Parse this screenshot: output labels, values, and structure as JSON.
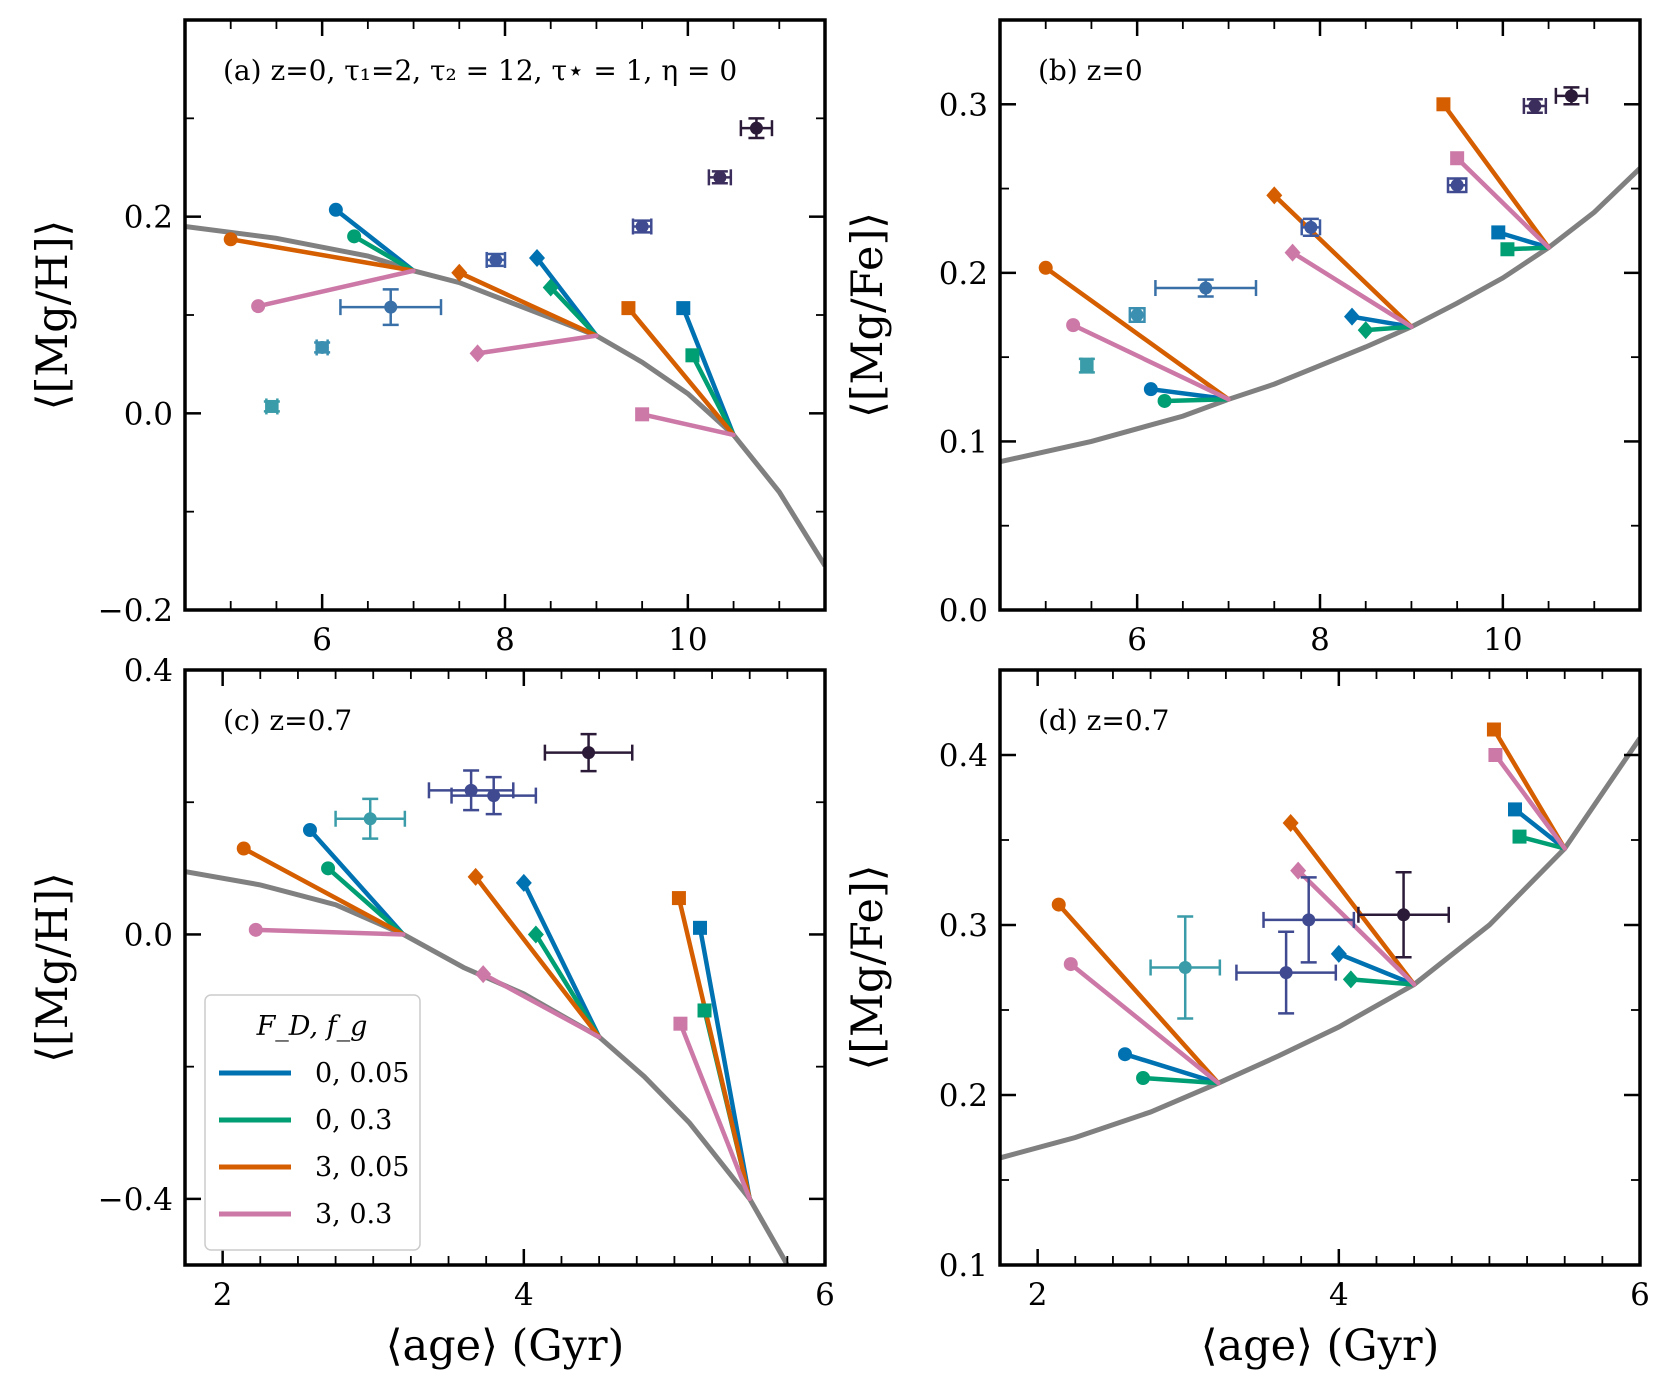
{
  "chart_data": [
    {
      "type": "scatter",
      "panel": "a",
      "annotation": "(a) z=0, τ₁=2, τ₂ = 12, τ⋆ = 1, η = 0",
      "xlabel": "",
      "ylabel": "⟨[Mg/H]⟩",
      "xlim": [
        4.5,
        11.5
      ],
      "ylim": [
        -0.2,
        0.4
      ],
      "xticks": [
        6,
        8,
        10
      ],
      "xticklabels": [
        "6",
        "8",
        "10"
      ],
      "yticks": [
        -0.2,
        0.0,
        0.2
      ],
      "yticklabels": [
        "−0.2",
        "0.0",
        "0.2"
      ],
      "model_curve": {
        "x": [
          4.5,
          5.5,
          6.5,
          7.0,
          7.5,
          8.5,
          9.0,
          9.5,
          10.0,
          10.5,
          11.0,
          11.5
        ],
        "y": [
          0.19,
          0.178,
          0.16,
          0.145,
          0.133,
          0.097,
          0.079,
          0.052,
          0.02,
          -0.022,
          -0.08,
          -0.155
        ]
      },
      "tracks": [
        {
          "color": "blue",
          "marker": "circle",
          "start": [
            7.0,
            0.145
          ],
          "end": [
            6.15,
            0.207
          ]
        },
        {
          "color": "green",
          "marker": "circle",
          "start": [
            7.0,
            0.145
          ],
          "end": [
            6.35,
            0.18
          ]
        },
        {
          "color": "orange",
          "marker": "circle",
          "start": [
            7.0,
            0.145
          ],
          "end": [
            5.0,
            0.177
          ]
        },
        {
          "color": "pink",
          "marker": "circle",
          "start": [
            7.0,
            0.145
          ],
          "end": [
            5.3,
            0.109
          ]
        },
        {
          "color": "blue",
          "marker": "diamond",
          "start": [
            9.0,
            0.079
          ],
          "end": [
            8.35,
            0.158
          ]
        },
        {
          "color": "green",
          "marker": "diamond",
          "start": [
            9.0,
            0.079
          ],
          "end": [
            8.5,
            0.128
          ]
        },
        {
          "color": "orange",
          "marker": "diamond",
          "start": [
            9.0,
            0.079
          ],
          "end": [
            7.5,
            0.143
          ]
        },
        {
          "color": "pink",
          "marker": "diamond",
          "start": [
            9.0,
            0.079
          ],
          "end": [
            7.7,
            0.061
          ]
        },
        {
          "color": "blue",
          "marker": "square",
          "start": [
            10.5,
            -0.022
          ],
          "end": [
            9.95,
            0.107
          ]
        },
        {
          "color": "green",
          "marker": "square",
          "start": [
            10.5,
            -0.022
          ],
          "end": [
            10.05,
            0.059
          ]
        },
        {
          "color": "orange",
          "marker": "square",
          "start": [
            10.5,
            -0.022
          ],
          "end": [
            9.35,
            0.107
          ]
        },
        {
          "color": "pink",
          "marker": "square",
          "start": [
            10.5,
            -0.022
          ],
          "end": [
            9.5,
            -0.001
          ]
        }
      ],
      "observations": [
        {
          "x": 5.45,
          "y": 0.007,
          "xerr": 0.06,
          "yerr": 0.005,
          "color": "#3a9ca8",
          "marker": "square"
        },
        {
          "x": 6.0,
          "y": 0.067,
          "xerr": 0.06,
          "yerr": 0.005,
          "color": "#3b8fb0",
          "marker": "circle"
        },
        {
          "x": 6.75,
          "y": 0.108,
          "xerr": 0.55,
          "yerr": 0.018,
          "color": "#3970a8",
          "marker": "circle"
        },
        {
          "x": 7.9,
          "y": 0.156,
          "xerr": 0.1,
          "yerr": 0.006,
          "color": "#3d5aa0",
          "marker": "circle"
        },
        {
          "x": 9.5,
          "y": 0.19,
          "xerr": 0.1,
          "yerr": 0.006,
          "color": "#3f4a90",
          "marker": "circle"
        },
        {
          "x": 10.35,
          "y": 0.24,
          "xerr": 0.12,
          "yerr": 0.006,
          "color": "#3b2d5c",
          "marker": "circle"
        },
        {
          "x": 10.75,
          "y": 0.29,
          "xerr": 0.17,
          "yerr": 0.01,
          "color": "#2b1b38",
          "marker": "circle"
        }
      ]
    },
    {
      "type": "scatter",
      "panel": "b",
      "annotation": "(b) z=0",
      "xlabel": "",
      "ylabel": "⟨[Mg/Fe]⟩",
      "xlim": [
        4.5,
        11.5
      ],
      "ylim": [
        0.0,
        0.35
      ],
      "xticks": [
        6,
        8,
        10
      ],
      "xticklabels": [
        "6",
        "8",
        "10"
      ],
      "yticks": [
        0.0,
        0.1,
        0.2,
        0.3
      ],
      "yticklabels": [
        "0.0",
        "0.1",
        "0.2",
        "0.3"
      ],
      "model_curve": {
        "x": [
          4.5,
          5.5,
          6.5,
          7.0,
          7.5,
          8.0,
          8.5,
          9.0,
          9.5,
          10.0,
          10.5,
          11.0,
          11.5
        ],
        "y": [
          0.088,
          0.1,
          0.115,
          0.125,
          0.134,
          0.145,
          0.156,
          0.168,
          0.182,
          0.197,
          0.215,
          0.236,
          0.262
        ]
      },
      "tracks": [
        {
          "color": "blue",
          "marker": "circle",
          "start": [
            7.0,
            0.125
          ],
          "end": [
            6.15,
            0.131
          ]
        },
        {
          "color": "green",
          "marker": "circle",
          "start": [
            7.0,
            0.125
          ],
          "end": [
            6.3,
            0.124
          ]
        },
        {
          "color": "orange",
          "marker": "circle",
          "start": [
            7.0,
            0.125
          ],
          "end": [
            5.0,
            0.203
          ]
        },
        {
          "color": "pink",
          "marker": "circle",
          "start": [
            7.0,
            0.125
          ],
          "end": [
            5.3,
            0.169
          ]
        },
        {
          "color": "blue",
          "marker": "diamond",
          "start": [
            9.0,
            0.168
          ],
          "end": [
            8.35,
            0.174
          ]
        },
        {
          "color": "green",
          "marker": "diamond",
          "start": [
            9.0,
            0.168
          ],
          "end": [
            8.5,
            0.166
          ]
        },
        {
          "color": "orange",
          "marker": "diamond",
          "start": [
            9.0,
            0.168
          ],
          "end": [
            7.5,
            0.246
          ]
        },
        {
          "color": "pink",
          "marker": "diamond",
          "start": [
            9.0,
            0.168
          ],
          "end": [
            7.7,
            0.212
          ]
        },
        {
          "color": "blue",
          "marker": "square",
          "start": [
            10.5,
            0.215
          ],
          "end": [
            9.95,
            0.224
          ]
        },
        {
          "color": "green",
          "marker": "square",
          "start": [
            10.5,
            0.215
          ],
          "end": [
            10.05,
            0.214
          ]
        },
        {
          "color": "orange",
          "marker": "square",
          "start": [
            10.5,
            0.215
          ],
          "end": [
            9.35,
            0.3
          ]
        },
        {
          "color": "pink",
          "marker": "square",
          "start": [
            10.5,
            0.215
          ],
          "end": [
            9.5,
            0.268
          ]
        }
      ],
      "observations": [
        {
          "x": 5.45,
          "y": 0.145,
          "xerr": 0.06,
          "yerr": 0.004,
          "color": "#3a9ca8",
          "marker": "square"
        },
        {
          "x": 6.0,
          "y": 0.175,
          "xerr": 0.08,
          "yerr": 0.004,
          "color": "#3b8fb0",
          "marker": "circle"
        },
        {
          "x": 6.75,
          "y": 0.191,
          "xerr": 0.55,
          "yerr": 0.005,
          "color": "#3970a8",
          "marker": "circle"
        },
        {
          "x": 7.9,
          "y": 0.227,
          "xerr": 0.1,
          "yerr": 0.005,
          "color": "#3d5aa0",
          "marker": "circle"
        },
        {
          "x": 9.5,
          "y": 0.252,
          "xerr": 0.1,
          "yerr": 0.004,
          "color": "#3f4a90",
          "marker": "circle"
        },
        {
          "x": 10.35,
          "y": 0.299,
          "xerr": 0.12,
          "yerr": 0.004,
          "color": "#3b2d5c",
          "marker": "circle"
        },
        {
          "x": 10.75,
          "y": 0.305,
          "xerr": 0.17,
          "yerr": 0.005,
          "color": "#2b1b38",
          "marker": "circle"
        }
      ]
    },
    {
      "type": "scatter",
      "panel": "c",
      "annotation": "(c) z=0.7",
      "xlabel": "⟨age⟩ (Gyr)",
      "ylabel": "⟨[Mg/H]⟩",
      "xlim": [
        1.75,
        6.0
      ],
      "ylim": [
        -0.5,
        0.4
      ],
      "xticks": [
        2,
        4,
        6
      ],
      "xticklabels": [
        "2",
        "4",
        "6"
      ],
      "yticks": [
        -0.4,
        0.0,
        0.4
      ],
      "yticklabels": [
        "−0.4",
        "0.0",
        "0.4"
      ],
      "model_curve": {
        "x": [
          1.75,
          2.25,
          2.75,
          3.2,
          3.6,
          4.0,
          4.5,
          4.8,
          5.1,
          5.5,
          5.75
        ],
        "y": [
          0.095,
          0.075,
          0.045,
          0.0,
          -0.05,
          -0.09,
          -0.155,
          -0.215,
          -0.285,
          -0.4,
          -0.5
        ]
      },
      "tracks": [
        {
          "color": "blue",
          "marker": "circle",
          "start": [
            3.2,
            0.0
          ],
          "end": [
            2.58,
            0.158
          ]
        },
        {
          "color": "green",
          "marker": "circle",
          "start": [
            3.2,
            0.0
          ],
          "end": [
            2.7,
            0.1
          ]
        },
        {
          "color": "orange",
          "marker": "circle",
          "start": [
            3.2,
            0.0
          ],
          "end": [
            2.14,
            0.13
          ]
        },
        {
          "color": "pink",
          "marker": "circle",
          "start": [
            3.2,
            0.0
          ],
          "end": [
            2.22,
            0.007
          ]
        },
        {
          "color": "blue",
          "marker": "diamond",
          "start": [
            4.5,
            -0.155
          ],
          "end": [
            4.0,
            0.078
          ]
        },
        {
          "color": "green",
          "marker": "diamond",
          "start": [
            4.5,
            -0.155
          ],
          "end": [
            4.08,
            0.0
          ]
        },
        {
          "color": "orange",
          "marker": "diamond",
          "start": [
            4.5,
            -0.155
          ],
          "end": [
            3.68,
            0.087
          ]
        },
        {
          "color": "pink",
          "marker": "diamond",
          "start": [
            4.5,
            -0.155
          ],
          "end": [
            3.73,
            -0.06
          ]
        },
        {
          "color": "blue",
          "marker": "square",
          "start": [
            5.5,
            -0.4
          ],
          "end": [
            5.17,
            0.01
          ]
        },
        {
          "color": "green",
          "marker": "square",
          "start": [
            5.5,
            -0.4
          ],
          "end": [
            5.2,
            -0.115
          ]
        },
        {
          "color": "orange",
          "marker": "square",
          "start": [
            5.5,
            -0.4
          ],
          "end": [
            5.03,
            0.055
          ]
        },
        {
          "color": "pink",
          "marker": "square",
          "start": [
            5.5,
            -0.4
          ],
          "end": [
            5.04,
            -0.135
          ]
        }
      ],
      "observations": [
        {
          "x": 2.98,
          "y": 0.175,
          "xerr": 0.23,
          "yerr": 0.03,
          "color": "#3a9ca8",
          "marker": "circle"
        },
        {
          "x": 3.65,
          "y": 0.218,
          "xerr": 0.28,
          "yerr": 0.03,
          "color": "#3f4a90",
          "marker": "circle"
        },
        {
          "x": 3.8,
          "y": 0.21,
          "xerr": 0.28,
          "yerr": 0.028,
          "color": "#3f4a90",
          "marker": "circle"
        },
        {
          "x": 4.43,
          "y": 0.275,
          "xerr": 0.29,
          "yerr": 0.028,
          "color": "#2b1b38",
          "marker": "circle"
        }
      ]
    },
    {
      "type": "scatter",
      "panel": "d",
      "annotation": "(d) z=0.7",
      "xlabel": "⟨age⟩ (Gyr)",
      "ylabel": "⟨[Mg/Fe]⟩",
      "xlim": [
        1.75,
        6.0
      ],
      "ylim": [
        0.1,
        0.45
      ],
      "xticks": [
        2,
        4,
        6
      ],
      "xticklabels": [
        "2",
        "4",
        "6"
      ],
      "yticks": [
        0.1,
        0.2,
        0.3,
        0.4
      ],
      "yticklabels": [
        "0.1",
        "0.2",
        "0.3",
        "0.4"
      ],
      "model_curve": {
        "x": [
          1.75,
          2.25,
          2.75,
          3.2,
          3.6,
          4.0,
          4.5,
          5.0,
          5.5,
          6.0
        ],
        "y": [
          0.163,
          0.175,
          0.19,
          0.207,
          0.223,
          0.24,
          0.265,
          0.3,
          0.345,
          0.41
        ]
      },
      "tracks": [
        {
          "color": "blue",
          "marker": "circle",
          "start": [
            3.2,
            0.207
          ],
          "end": [
            2.58,
            0.224
          ]
        },
        {
          "color": "green",
          "marker": "circle",
          "start": [
            3.2,
            0.207
          ],
          "end": [
            2.7,
            0.21
          ]
        },
        {
          "color": "orange",
          "marker": "circle",
          "start": [
            3.2,
            0.207
          ],
          "end": [
            2.14,
            0.312
          ]
        },
        {
          "color": "pink",
          "marker": "circle",
          "start": [
            3.2,
            0.207
          ],
          "end": [
            2.22,
            0.277
          ]
        },
        {
          "color": "blue",
          "marker": "diamond",
          "start": [
            4.5,
            0.265
          ],
          "end": [
            4.0,
            0.283
          ]
        },
        {
          "color": "green",
          "marker": "diamond",
          "start": [
            4.5,
            0.265
          ],
          "end": [
            4.08,
            0.268
          ]
        },
        {
          "color": "orange",
          "marker": "diamond",
          "start": [
            4.5,
            0.265
          ],
          "end": [
            3.68,
            0.36
          ]
        },
        {
          "color": "pink",
          "marker": "diamond",
          "start": [
            4.5,
            0.265
          ],
          "end": [
            3.73,
            0.332
          ]
        },
        {
          "color": "blue",
          "marker": "square",
          "start": [
            5.5,
            0.345
          ],
          "end": [
            5.17,
            0.368
          ]
        },
        {
          "color": "green",
          "marker": "square",
          "start": [
            5.5,
            0.345
          ],
          "end": [
            5.2,
            0.352
          ]
        },
        {
          "color": "orange",
          "marker": "square",
          "start": [
            5.5,
            0.345
          ],
          "end": [
            5.03,
            0.415
          ]
        },
        {
          "color": "pink",
          "marker": "square",
          "start": [
            5.5,
            0.345
          ],
          "end": [
            5.04,
            0.4
          ]
        }
      ],
      "observations": [
        {
          "x": 2.98,
          "y": 0.275,
          "xerr": 0.23,
          "yerr": 0.03,
          "color": "#3a9ca8",
          "marker": "circle"
        },
        {
          "x": 3.65,
          "y": 0.272,
          "xerr": 0.33,
          "yerr": 0.024,
          "color": "#3f4a90",
          "marker": "circle"
        },
        {
          "x": 3.8,
          "y": 0.303,
          "xerr": 0.3,
          "yerr": 0.025,
          "color": "#3f4a90",
          "marker": "circle"
        },
        {
          "x": 4.43,
          "y": 0.306,
          "xerr": 0.3,
          "yerr": 0.025,
          "color": "#2b1b38",
          "marker": "circle"
        }
      ]
    }
  ],
  "legend": {
    "title": "F_D, f_g",
    "entries": [
      {
        "label": "0, 0.05",
        "color": "blue"
      },
      {
        "label": "0, 0.3",
        "color": "green"
      },
      {
        "label": "3, 0.05",
        "color": "orange"
      },
      {
        "label": "3, 0.3",
        "color": "pink"
      }
    ]
  },
  "colors": {
    "blue": "#0072b2",
    "green": "#009e73",
    "orange": "#d55e00",
    "pink": "#cc79a7",
    "curve": "#808080"
  }
}
